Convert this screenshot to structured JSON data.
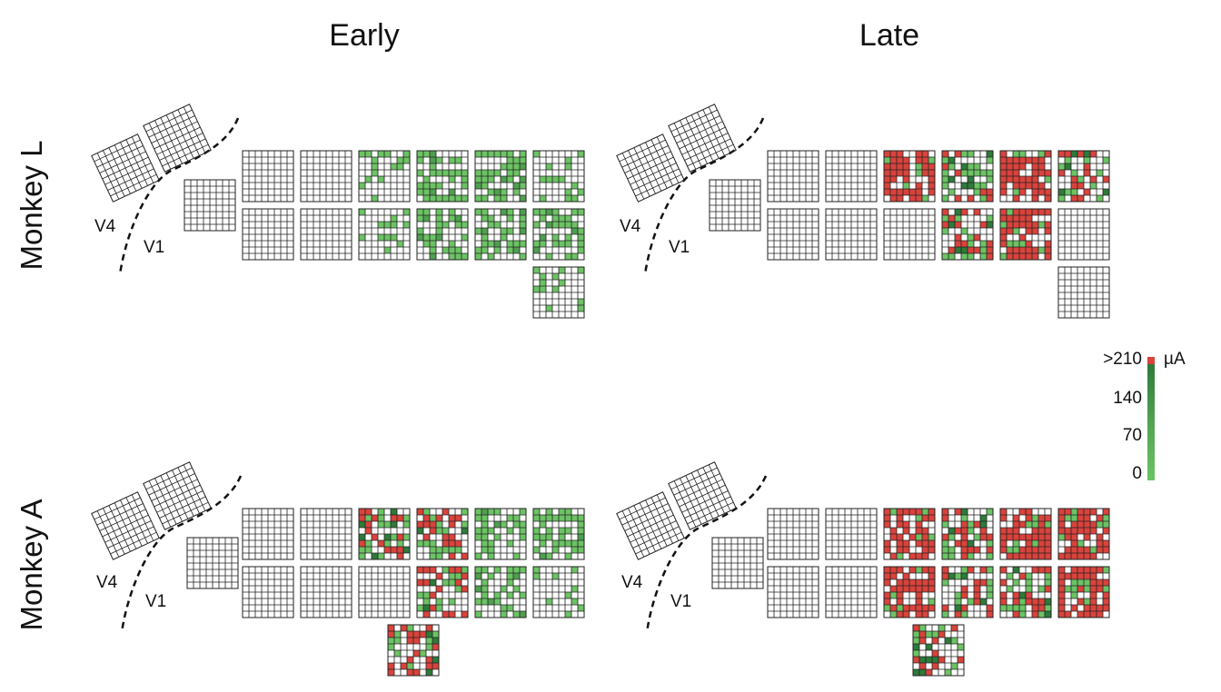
{
  "columns": [
    "Early",
    "Late"
  ],
  "rows": [
    "Monkey L",
    "Monkey A"
  ],
  "area_labels": {
    "v4": "V4",
    "v1": "V1"
  },
  "colorbar": {
    "unit": "µA",
    "ticks": [
      "0",
      "70",
      "140",
      ">210"
    ],
    "colors": {
      "low": "#6cc364",
      "mid": "#4f9f50",
      "high": "#2e7a3a",
      "max": "#d9433c",
      "off": "#ffffff",
      "grid": "#222222"
    }
  },
  "panels": [
    {
      "monkey": "Monkey L",
      "phase": "Early",
      "arrays": [
        {
          "id": "v4-a",
          "activated": "none"
        },
        {
          "id": "v4-b",
          "activated": "none"
        },
        {
          "id": "v1-small",
          "activated": "none"
        },
        {
          "id": "top-1",
          "activated": "none"
        },
        {
          "id": "top-2",
          "activated": "none"
        },
        {
          "id": "top-3",
          "activated": "sparse-green"
        },
        {
          "id": "top-4",
          "activated": "green"
        },
        {
          "id": "top-5",
          "activated": "green"
        },
        {
          "id": "top-6",
          "activated": "sparse-green"
        },
        {
          "id": "mid-1",
          "activated": "none"
        },
        {
          "id": "mid-2",
          "activated": "none"
        },
        {
          "id": "mid-3",
          "activated": "sparse-green"
        },
        {
          "id": "mid-4",
          "activated": "green"
        },
        {
          "id": "mid-5",
          "activated": "green"
        },
        {
          "id": "mid-6",
          "activated": "green"
        },
        {
          "id": "bottom",
          "activated": "sparse-green"
        }
      ]
    },
    {
      "monkey": "Monkey L",
      "phase": "Late",
      "arrays": [
        {
          "id": "v4-a",
          "activated": "none"
        },
        {
          "id": "v4-b",
          "activated": "none"
        },
        {
          "id": "v1-small",
          "activated": "none"
        },
        {
          "id": "top-1",
          "activated": "none"
        },
        {
          "id": "top-2",
          "activated": "none"
        },
        {
          "id": "top-3",
          "activated": "red"
        },
        {
          "id": "top-4",
          "activated": "mixed"
        },
        {
          "id": "top-5",
          "activated": "red"
        },
        {
          "id": "top-6",
          "activated": "mixed"
        },
        {
          "id": "mid-1",
          "activated": "none"
        },
        {
          "id": "mid-2",
          "activated": "none"
        },
        {
          "id": "mid-3",
          "activated": "none"
        },
        {
          "id": "mid-4",
          "activated": "mixed"
        },
        {
          "id": "mid-5",
          "activated": "red"
        },
        {
          "id": "mid-6",
          "activated": "none"
        },
        {
          "id": "bottom",
          "activated": "none"
        }
      ]
    },
    {
      "monkey": "Monkey A",
      "phase": "Early",
      "arrays": [
        {
          "id": "v4-a",
          "activated": "none"
        },
        {
          "id": "v4-b",
          "activated": "none"
        },
        {
          "id": "v1-small",
          "activated": "none"
        },
        {
          "id": "top-1",
          "activated": "none"
        },
        {
          "id": "top-2",
          "activated": "none"
        },
        {
          "id": "top-3",
          "activated": "mixed"
        },
        {
          "id": "top-4",
          "activated": "mixed"
        },
        {
          "id": "top-5",
          "activated": "green"
        },
        {
          "id": "top-6",
          "activated": "green"
        },
        {
          "id": "mid-1",
          "activated": "none"
        },
        {
          "id": "mid-2",
          "activated": "none"
        },
        {
          "id": "mid-3",
          "activated": "none"
        },
        {
          "id": "mid-4",
          "activated": "mixed"
        },
        {
          "id": "mid-5",
          "activated": "green"
        },
        {
          "id": "mid-6",
          "activated": "sparse-green"
        },
        {
          "id": "bottom",
          "activated": "mixed"
        }
      ]
    },
    {
      "monkey": "Monkey A",
      "phase": "Late",
      "arrays": [
        {
          "id": "v4-a",
          "activated": "none"
        },
        {
          "id": "v4-b",
          "activated": "none"
        },
        {
          "id": "v1-small",
          "activated": "none"
        },
        {
          "id": "top-1",
          "activated": "none"
        },
        {
          "id": "top-2",
          "activated": "none"
        },
        {
          "id": "top-3",
          "activated": "red"
        },
        {
          "id": "top-4",
          "activated": "mixed"
        },
        {
          "id": "top-5",
          "activated": "red"
        },
        {
          "id": "top-6",
          "activated": "red"
        },
        {
          "id": "mid-1",
          "activated": "none"
        },
        {
          "id": "mid-2",
          "activated": "none"
        },
        {
          "id": "mid-3",
          "activated": "red"
        },
        {
          "id": "mid-4",
          "activated": "mixed"
        },
        {
          "id": "mid-5",
          "activated": "mixed"
        },
        {
          "id": "mid-6",
          "activated": "red"
        },
        {
          "id": "bottom",
          "activated": "mixed"
        }
      ]
    }
  ]
}
